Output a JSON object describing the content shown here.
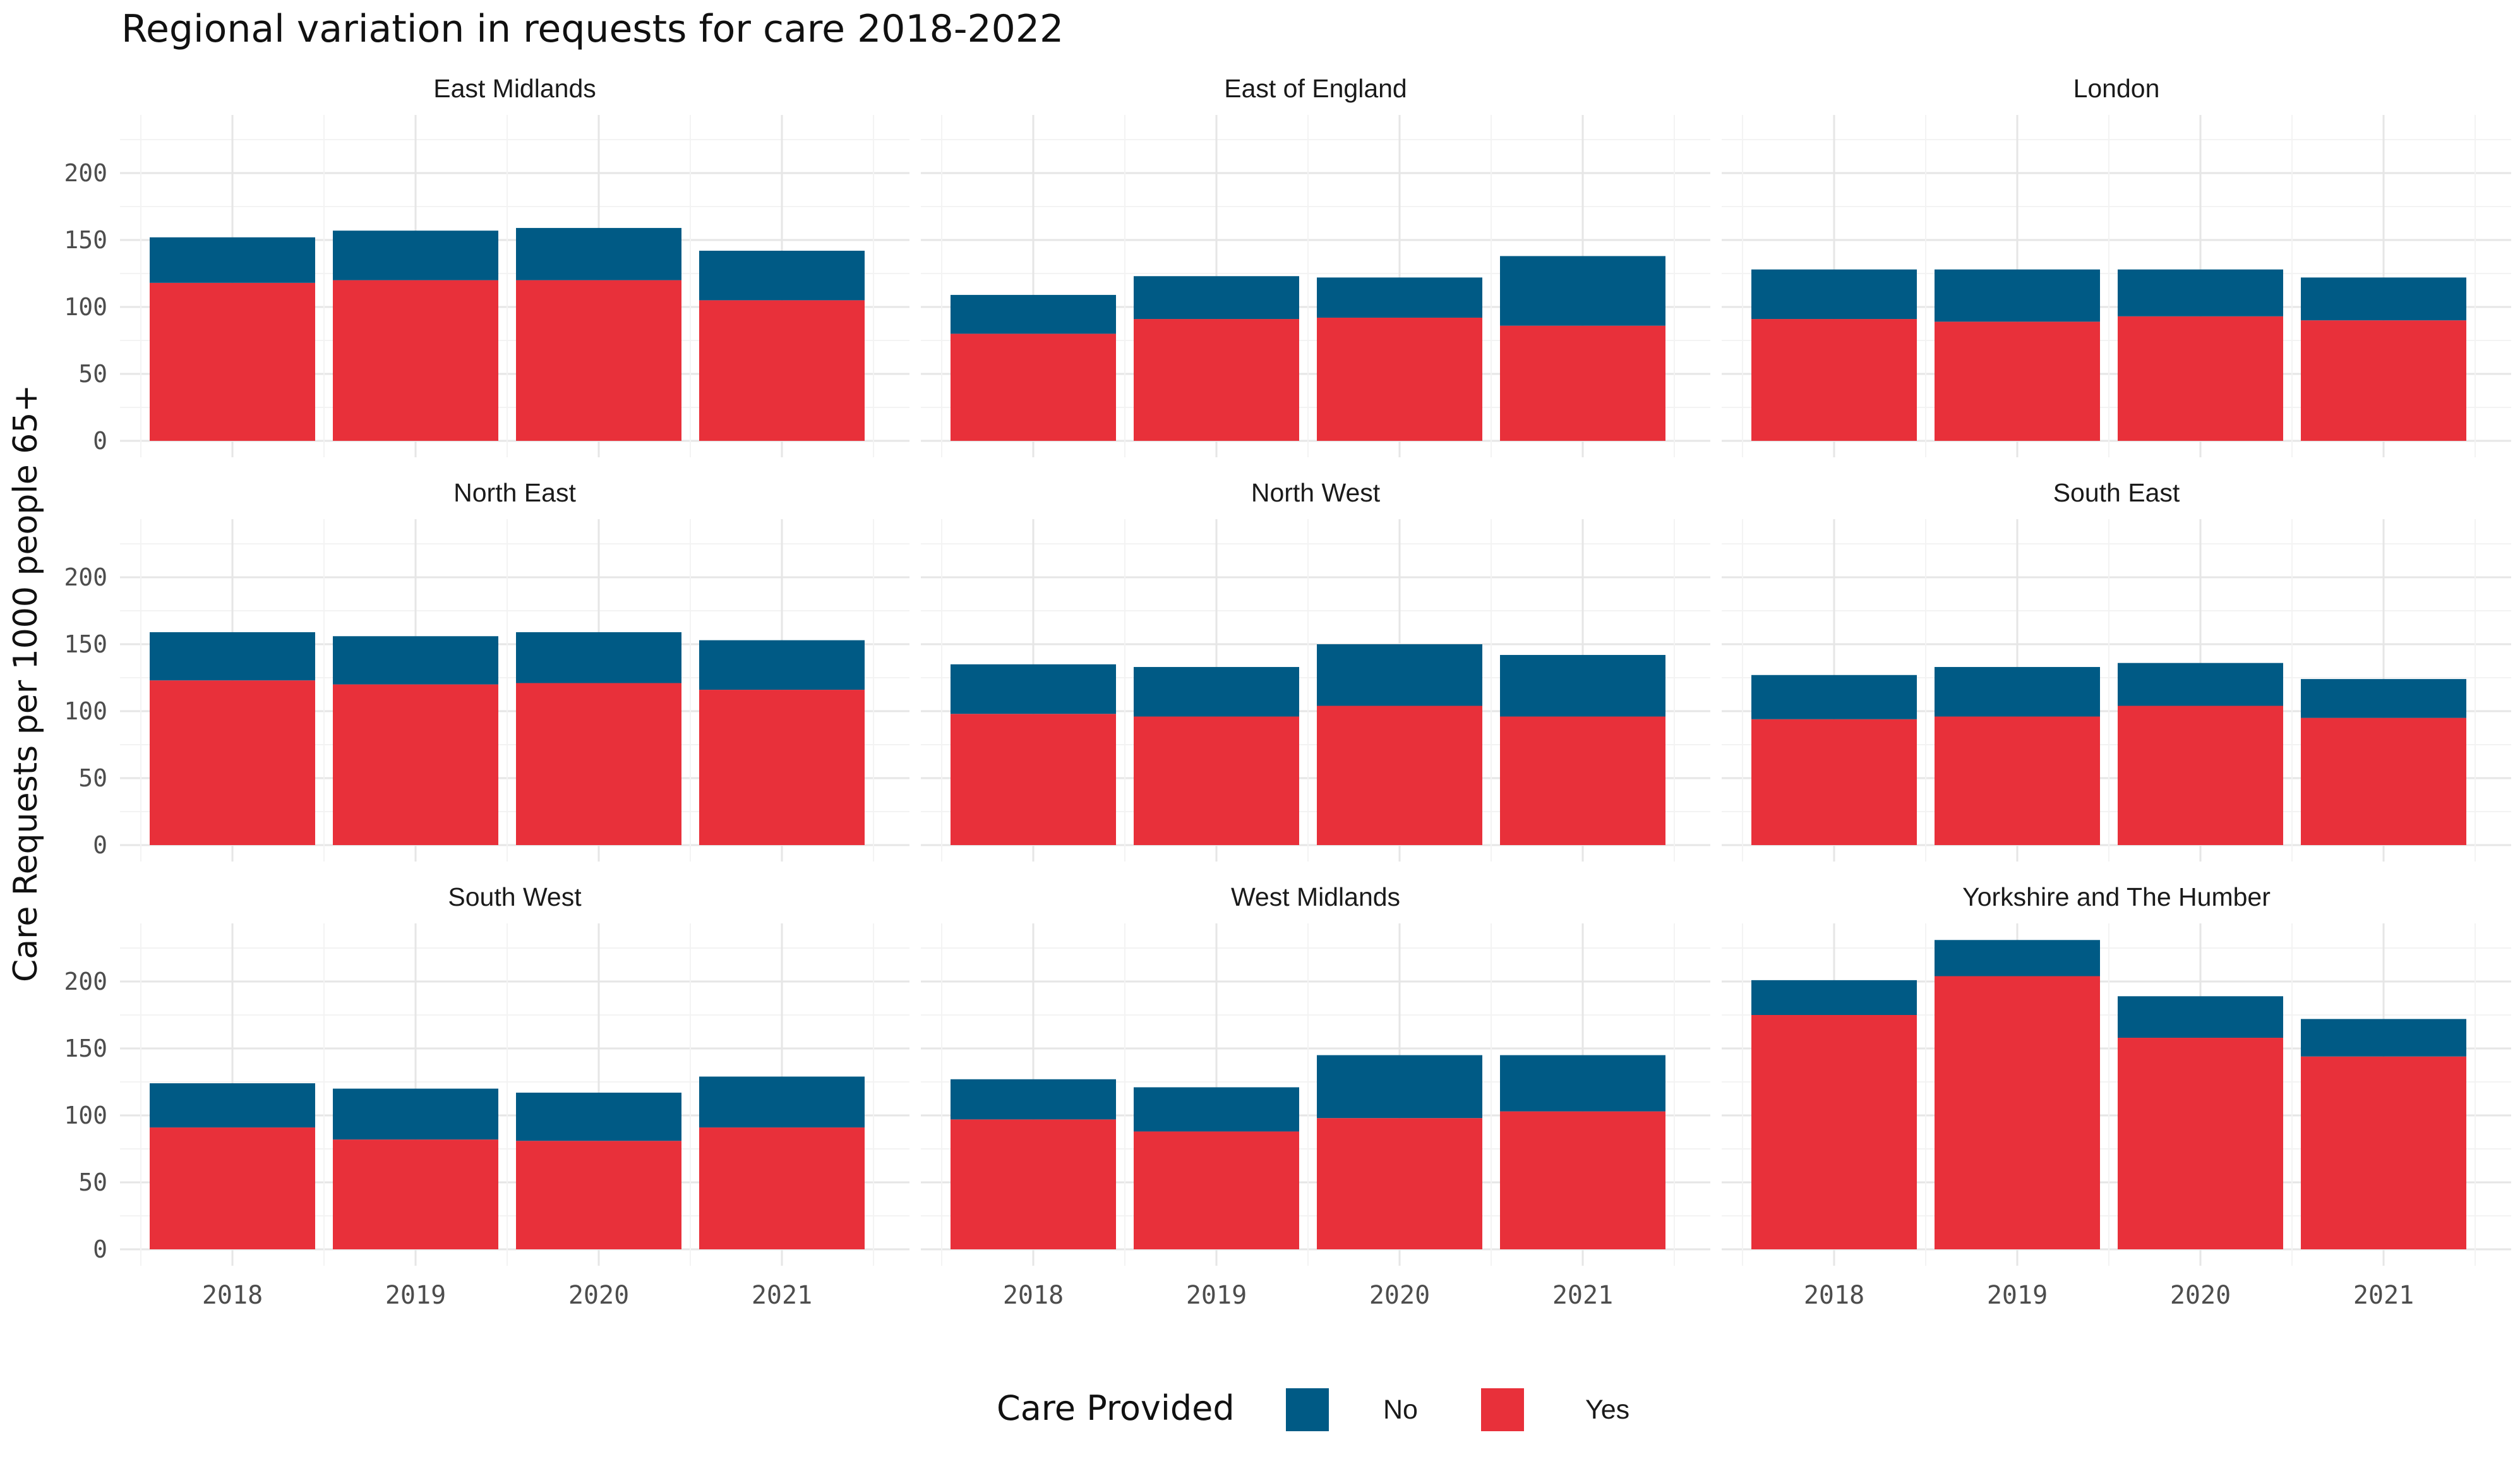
{
  "chart_data": {
    "type": "bar",
    "stacked": true,
    "faceted": true,
    "title": "Regional variation in requests for care 2018-2022",
    "ylabel": "Care Requests per 1000 people 65+",
    "xlabel": "",
    "categories": [
      "2018",
      "2019",
      "2020",
      "2021"
    ],
    "ylim": [
      0,
      230
    ],
    "yticks": [
      "0",
      "50",
      "100",
      "150",
      "200"
    ],
    "grid": true,
    "legend": {
      "title": "Care Provided",
      "position": "bottom",
      "entries": [
        {
          "label": "No",
          "color": "#005a85"
        },
        {
          "label": "Yes",
          "color": "#e8303a"
        }
      ]
    },
    "facets": [
      {
        "name": "East Midlands",
        "yes": [
          118,
          120,
          120,
          105
        ],
        "no": [
          34,
          37,
          39,
          37
        ]
      },
      {
        "name": "East of England",
        "yes": [
          80,
          91,
          92,
          86
        ],
        "no": [
          29,
          32,
          30,
          52
        ]
      },
      {
        "name": "London",
        "yes": [
          91,
          89,
          93,
          90
        ],
        "no": [
          37,
          39,
          35,
          32
        ]
      },
      {
        "name": "North East",
        "yes": [
          123,
          120,
          121,
          116
        ],
        "no": [
          36,
          36,
          38,
          37
        ]
      },
      {
        "name": "North West",
        "yes": [
          98,
          96,
          104,
          96
        ],
        "no": [
          37,
          37,
          46,
          46
        ]
      },
      {
        "name": "South East",
        "yes": [
          94,
          96,
          104,
          95
        ],
        "no": [
          33,
          37,
          32,
          29
        ]
      },
      {
        "name": "South West",
        "yes": [
          91,
          82,
          81,
          91
        ],
        "no": [
          33,
          38,
          36,
          38
        ]
      },
      {
        "name": "West Midlands",
        "yes": [
          97,
          88,
          98,
          103
        ],
        "no": [
          30,
          33,
          47,
          42
        ]
      },
      {
        "name": "Yorkshire and The Humber",
        "yes": [
          175,
          204,
          158,
          144
        ],
        "no": [
          26,
          27,
          31,
          28
        ]
      }
    ]
  }
}
